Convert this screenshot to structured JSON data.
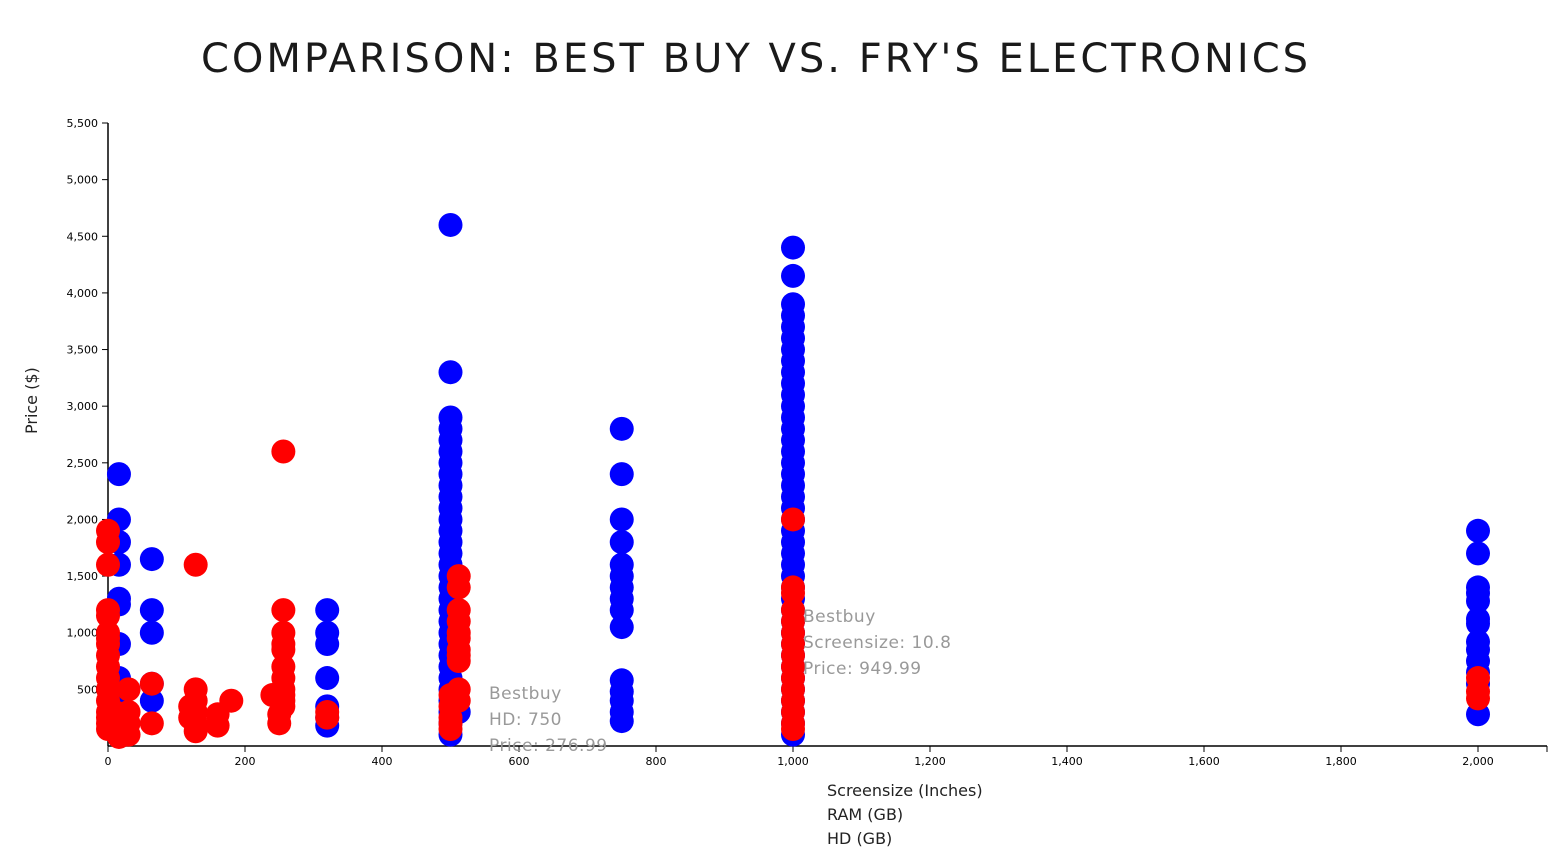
{
  "title": "COMPARISON: BEST BUY VS. FRY'S ELECTRONICS",
  "y_axis_label": "Price ($)",
  "x_axis_options": [
    "Screensize (Inches)",
    "RAM (GB)",
    "HD (GB)"
  ],
  "tooltips": [
    {
      "lines": [
        "Bestbuy",
        "HD: 750",
        "Price: 276.99"
      ]
    },
    {
      "lines": [
        "Bestbuy",
        "Screensize: 10.8",
        "Price: 949.99"
      ]
    }
  ],
  "colors": {
    "bestbuy": "#0000ff",
    "frys": "#ff0000",
    "tooltip": "#999999"
  },
  "chart_data": {
    "type": "scatter",
    "xlim": [
      0,
      2100
    ],
    "ylim": [
      0,
      5500
    ],
    "x_ticks": [
      0,
      200,
      400,
      600,
      800,
      1000,
      1200,
      1400,
      1600,
      1800,
      2000
    ],
    "x_tick_labels": [
      "0",
      "200",
      "400",
      "600",
      "800",
      "1,000",
      "1,200",
      "1,400",
      "1,600",
      "1,800",
      "2,000"
    ],
    "y_ticks": [
      500,
      1000,
      1500,
      2000,
      2500,
      3000,
      3500,
      4000,
      4500,
      5000,
      5500
    ],
    "y_tick_labels": [
      "500",
      "1,000",
      "1,500",
      "2,000",
      "2,500",
      "3,000",
      "3,500",
      "4,000",
      "4,500",
      "5,000",
      "5,500"
    ],
    "series": [
      {
        "color": "#0000ff",
        "points": [
          [
            16,
            2400
          ],
          [
            16,
            2000
          ],
          [
            16,
            1800
          ],
          [
            16,
            1600
          ],
          [
            16,
            1300
          ],
          [
            16,
            1250
          ],
          [
            16,
            900
          ],
          [
            16,
            600
          ],
          [
            16,
            400
          ],
          [
            64,
            1650
          ],
          [
            64,
            1200
          ],
          [
            64,
            1000
          ],
          [
            64,
            550
          ],
          [
            64,
            400
          ],
          [
            320,
            1200
          ],
          [
            320,
            1000
          ],
          [
            320,
            900
          ],
          [
            320,
            600
          ],
          [
            320,
            350
          ],
          [
            320,
            250
          ],
          [
            320,
            180
          ],
          [
            500,
            4600
          ],
          [
            500,
            3300
          ],
          [
            500,
            2900
          ],
          [
            500,
            2800
          ],
          [
            500,
            2700
          ],
          [
            500,
            2600
          ],
          [
            500,
            2500
          ],
          [
            500,
            2400
          ],
          [
            500,
            2300
          ],
          [
            500,
            2200
          ],
          [
            500,
            2100
          ],
          [
            500,
            2000
          ],
          [
            500,
            1900
          ],
          [
            500,
            1800
          ],
          [
            500,
            1700
          ],
          [
            500,
            1600
          ],
          [
            500,
            1500
          ],
          [
            500,
            1400
          ],
          [
            500,
            1300
          ],
          [
            500,
            1200
          ],
          [
            500,
            1100
          ],
          [
            500,
            1000
          ],
          [
            500,
            900
          ],
          [
            500,
            800
          ],
          [
            500,
            700
          ],
          [
            500,
            600
          ],
          [
            500,
            500
          ],
          [
            500,
            400
          ],
          [
            500,
            300
          ],
          [
            500,
            200
          ],
          [
            500,
            100
          ],
          [
            512,
            300
          ],
          [
            750,
            2800
          ],
          [
            750,
            2400
          ],
          [
            750,
            2000
          ],
          [
            750,
            1800
          ],
          [
            750,
            1600
          ],
          [
            750,
            1500
          ],
          [
            750,
            1400
          ],
          [
            750,
            1300
          ],
          [
            750,
            1200
          ],
          [
            750,
            1050
          ],
          [
            750,
            580
          ],
          [
            750,
            480
          ],
          [
            750,
            400
          ],
          [
            750,
            300
          ],
          [
            750,
            220
          ],
          [
            1000,
            4400
          ],
          [
            1000,
            4150
          ],
          [
            1000,
            3900
          ],
          [
            1000,
            3800
          ],
          [
            1000,
            3700
          ],
          [
            1000,
            3600
          ],
          [
            1000,
            3500
          ],
          [
            1000,
            3400
          ],
          [
            1000,
            3300
          ],
          [
            1000,
            3200
          ],
          [
            1000,
            3100
          ],
          [
            1000,
            3000
          ],
          [
            1000,
            2900
          ],
          [
            1000,
            2800
          ],
          [
            1000,
            2700
          ],
          [
            1000,
            2600
          ],
          [
            1000,
            2500
          ],
          [
            1000,
            2400
          ],
          [
            1000,
            2300
          ],
          [
            1000,
            2200
          ],
          [
            1000,
            2100
          ],
          [
            1000,
            2000
          ],
          [
            1000,
            1900
          ],
          [
            1000,
            1800
          ],
          [
            1000,
            1700
          ],
          [
            1000,
            1600
          ],
          [
            1000,
            1500
          ],
          [
            1000,
            1400
          ],
          [
            1000,
            1300
          ],
          [
            1000,
            1200
          ],
          [
            1000,
            1100
          ],
          [
            1000,
            1000
          ],
          [
            1000,
            900
          ],
          [
            1000,
            800
          ],
          [
            1000,
            700
          ],
          [
            1000,
            600
          ],
          [
            1000,
            500
          ],
          [
            1000,
            400
          ],
          [
            1000,
            300
          ],
          [
            1000,
            200
          ],
          [
            1000,
            100
          ],
          [
            2000,
            1900
          ],
          [
            2000,
            1700
          ],
          [
            2000,
            1400
          ],
          [
            2000,
            1350
          ],
          [
            2000,
            1280
          ],
          [
            2000,
            1120
          ],
          [
            2000,
            1080
          ],
          [
            2000,
            920
          ],
          [
            2000,
            850
          ],
          [
            2000,
            750
          ],
          [
            2000,
            650
          ],
          [
            2000,
            550
          ],
          [
            2000,
            280
          ]
        ]
      },
      {
        "color": "#ff0000",
        "points": [
          [
            0,
            1900
          ],
          [
            0,
            1800
          ],
          [
            0,
            1600
          ],
          [
            0,
            1200
          ],
          [
            0,
            1150
          ],
          [
            0,
            1000
          ],
          [
            0,
            950
          ],
          [
            0,
            900
          ],
          [
            0,
            800
          ],
          [
            0,
            700
          ],
          [
            0,
            600
          ],
          [
            0,
            500
          ],
          [
            0,
            400
          ],
          [
            0,
            300
          ],
          [
            0,
            250
          ],
          [
            0,
            200
          ],
          [
            0,
            150
          ],
          [
            10,
            150
          ],
          [
            10,
            300
          ],
          [
            16,
            80
          ],
          [
            16,
            200
          ],
          [
            30,
            500
          ],
          [
            30,
            300
          ],
          [
            30,
            100
          ],
          [
            30,
            200
          ],
          [
            64,
            550
          ],
          [
            64,
            200
          ],
          [
            128,
            1600
          ],
          [
            128,
            500
          ],
          [
            128,
            400
          ],
          [
            128,
            300
          ],
          [
            128,
            200
          ],
          [
            128,
            130
          ],
          [
            120,
            250
          ],
          [
            120,
            350
          ],
          [
            160,
            280
          ],
          [
            160,
            180
          ],
          [
            180,
            400
          ],
          [
            240,
            450
          ],
          [
            250,
            200
          ],
          [
            250,
            280
          ],
          [
            256,
            2600
          ],
          [
            256,
            1200
          ],
          [
            256,
            1000
          ],
          [
            256,
            900
          ],
          [
            256,
            850
          ],
          [
            256,
            700
          ],
          [
            256,
            600
          ],
          [
            256,
            500
          ],
          [
            256,
            450
          ],
          [
            256,
            400
          ],
          [
            256,
            350
          ],
          [
            320,
            300
          ],
          [
            320,
            250
          ],
          [
            512,
            1500
          ],
          [
            512,
            1400
          ],
          [
            512,
            1200
          ],
          [
            512,
            1100
          ],
          [
            512,
            1000
          ],
          [
            512,
            950
          ],
          [
            512,
            850
          ],
          [
            512,
            800
          ],
          [
            512,
            750
          ],
          [
            512,
            500
          ],
          [
            512,
            400
          ],
          [
            500,
            450
          ],
          [
            500,
            350
          ],
          [
            500,
            250
          ],
          [
            500,
            200
          ],
          [
            500,
            150
          ],
          [
            1000,
            2000
          ],
          [
            1000,
            1400
          ],
          [
            1000,
            1350
          ],
          [
            1000,
            1200
          ],
          [
            1000,
            1100
          ],
          [
            1000,
            1000
          ],
          [
            1000,
            900
          ],
          [
            1000,
            800
          ],
          [
            1000,
            700
          ],
          [
            1000,
            600
          ],
          [
            1000,
            500
          ],
          [
            1000,
            400
          ],
          [
            1000,
            300
          ],
          [
            1000,
            200
          ],
          [
            1000,
            150
          ],
          [
            2000,
            600
          ],
          [
            2000,
            480
          ],
          [
            2000,
            420
          ]
        ]
      }
    ]
  }
}
